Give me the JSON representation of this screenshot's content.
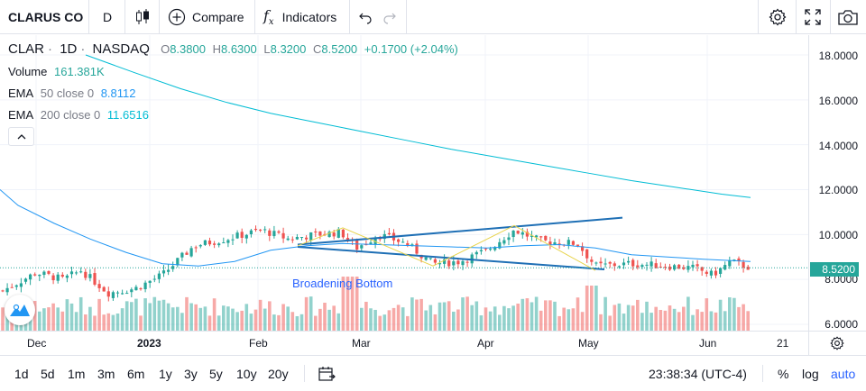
{
  "toolbar": {
    "symbol": "CLARUS CO",
    "interval": "D",
    "compare_label": "Compare",
    "indicators_label": "Indicators",
    "icons": [
      "candles-icon",
      "plus-circle-icon",
      "fx-icon",
      "undo-icon",
      "redo-icon",
      "gear-icon",
      "fullscreen-icon",
      "camera-icon"
    ]
  },
  "legend": {
    "ticker": "CLAR",
    "interval": "1D",
    "exchange": "NASDAQ",
    "o_label": "O",
    "o_value": "8.3800",
    "h_label": "H",
    "h_value": "8.6300",
    "l_label": "L",
    "l_value": "8.3200",
    "c_label": "C",
    "c_value": "8.5200",
    "change": "+0.1700 (+2.04%)",
    "volume_label": "Volume",
    "volume_value": "161.381K",
    "ema50_name": "EMA",
    "ema50_params": "50 close 0",
    "ema50_value": "8.8112",
    "ema200_name": "EMA",
    "ema200_params": "200 close 0",
    "ema200_value": "11.6516"
  },
  "pattern_label": "Broadening Bottom",
  "price_axis": {
    "ticks": [
      "18.0000",
      "16.0000",
      "14.0000",
      "12.0000",
      "10.0000",
      "8.0000",
      "6.0000"
    ],
    "current_price": "8.5200"
  },
  "time_axis": {
    "labels": [
      "Dec",
      "2023",
      "Feb",
      "Mar",
      "Apr",
      "May",
      "Jun",
      "21"
    ]
  },
  "bottom": {
    "ranges": [
      "1d",
      "5d",
      "1m",
      "3m",
      "6m",
      "1y",
      "3y",
      "5y",
      "10y",
      "20y"
    ],
    "time": "23:38:34 (UTC-4)",
    "percent": "%",
    "log": "log",
    "auto": "auto"
  },
  "colors": {
    "up": "#26a69a",
    "down": "#ef5350",
    "ema50": "#2196f3",
    "ema200": "#00bcd4",
    "pattern_line": "#1e6fb5",
    "accent": "#2962ff"
  },
  "chart_data": {
    "type": "candlestick",
    "symbol": "CLAR",
    "ylim": [
      5.8,
      19.0
    ],
    "ticks": [
      18,
      16,
      14,
      12,
      10,
      8,
      6
    ],
    "last_close": 8.52,
    "ema50": [
      [
        0,
        12.0
      ],
      [
        20,
        11.3
      ],
      [
        60,
        10.5
      ],
      [
        100,
        9.8
      ],
      [
        140,
        9.2
      ],
      [
        180,
        8.7
      ],
      [
        220,
        8.6
      ],
      [
        260,
        8.8
      ],
      [
        300,
        9.3
      ],
      [
        340,
        9.5
      ],
      [
        380,
        9.6
      ],
      [
        420,
        9.55
      ],
      [
        460,
        9.5
      ],
      [
        500,
        9.45
      ],
      [
        540,
        9.4
      ],
      [
        580,
        9.5
      ],
      [
        620,
        9.55
      ],
      [
        660,
        9.4
      ],
      [
        700,
        9.1
      ],
      [
        740,
        9.0
      ],
      [
        780,
        8.9
      ],
      [
        832,
        8.8
      ]
    ],
    "ema200": [
      [
        95,
        18.0
      ],
      [
        150,
        17.2
      ],
      [
        200,
        16.5
      ],
      [
        250,
        15.9
      ],
      [
        300,
        15.4
      ],
      [
        350,
        15.0
      ],
      [
        400,
        14.6
      ],
      [
        450,
        14.2
      ],
      [
        500,
        13.8
      ],
      [
        550,
        13.45
      ],
      [
        600,
        13.1
      ],
      [
        650,
        12.75
      ],
      [
        700,
        12.4
      ],
      [
        750,
        12.1
      ],
      [
        800,
        11.8
      ],
      [
        832,
        11.65
      ]
    ],
    "pattern": {
      "label": "Broadening Bottom",
      "top_line": [
        [
          330,
          9.55
        ],
        [
          690,
          10.75
        ]
      ],
      "bottom_line": [
        [
          330,
          9.45
        ],
        [
          670,
          8.45
        ]
      ],
      "zigzag": [
        [
          330,
          9.5
        ],
        [
          380,
          10.3
        ],
        [
          480,
          8.6
        ],
        [
          570,
          10.4
        ],
        [
          660,
          8.4
        ]
      ]
    }
  }
}
